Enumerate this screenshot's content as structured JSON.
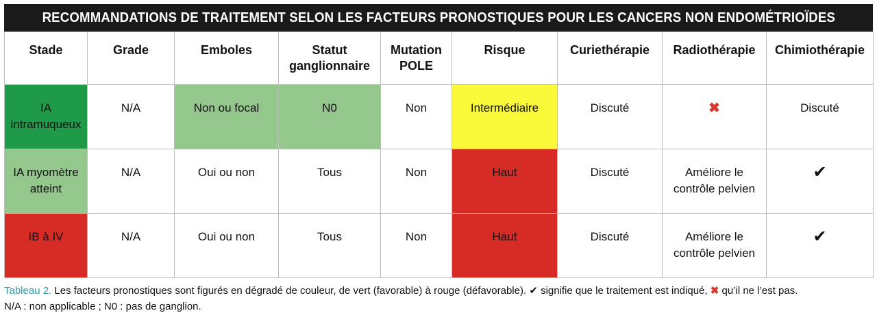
{
  "title": "RECOMMANDATIONS DE TRAITEMENT SELON LES FACTEURS PRONOSTIQUES POUR LES CANCERS NON ENDOMÉTRIOÏDES",
  "headers": {
    "stade": "Stade",
    "grade": "Grade",
    "emboles": "Emboles",
    "statut_1": "Statut",
    "statut_2": "ganglionnaire",
    "mutation_1": "Mutation",
    "mutation_2": "POLE",
    "risque": "Risque",
    "curietherapie": "Curiethérapie",
    "radiotherapie": "Radiothérapie",
    "chimiotherapie": "Chimiothérapie"
  },
  "rows": [
    {
      "stade_1": "IA",
      "stade_2": "intramuqueux",
      "grade": "N/A",
      "emboles": "Non ou focal",
      "statut": "N0",
      "mutation": "Non",
      "risque": "Intermédiaire",
      "curietherapie": "Discuté",
      "radiotherapie_icon": "cross-icon",
      "chimiotherapie": "Discuté"
    },
    {
      "stade_1": "IA myomètre",
      "stade_2": "atteint",
      "grade": "N/A",
      "emboles": "Oui ou non",
      "statut": "Tous",
      "mutation": "Non",
      "risque": "Haut",
      "curietherapie": "Discuté",
      "radiotherapie_1": "Améliore le",
      "radiotherapie_2": "contrôle pelvien",
      "chimiotherapie_icon": "check-icon"
    },
    {
      "stade_1": "IB à IV",
      "grade": "N/A",
      "emboles": "Oui ou non",
      "statut": "Tous",
      "mutation": "Non",
      "risque": "Haut",
      "curietherapie": "Discuté",
      "radiotherapie_1": "Améliore le",
      "radiotherapie_2": "contrôle pelvien",
      "chimiotherapie_icon": "check-icon"
    }
  ],
  "caption": {
    "label": "Tableau 2.",
    "text_1": " Les facteurs pronostiques sont figurés en dégradé de couleur, de vert (favorable) à rouge (défavorable). ",
    "text_2": " signifie que le traitement est indiqué, ",
    "text_3": " qu’il ne l’est pas.",
    "line_2": "N/A : non applicable ; N0 : pas de ganglion."
  },
  "colors": {
    "favorable_dark": "#1e9a48",
    "favorable_light": "#94c78c",
    "intermediate": "#fafa3a",
    "unfavorable": "#d72c26",
    "caption_label": "#2a9aa5",
    "cross": "#d63a2a"
  }
}
